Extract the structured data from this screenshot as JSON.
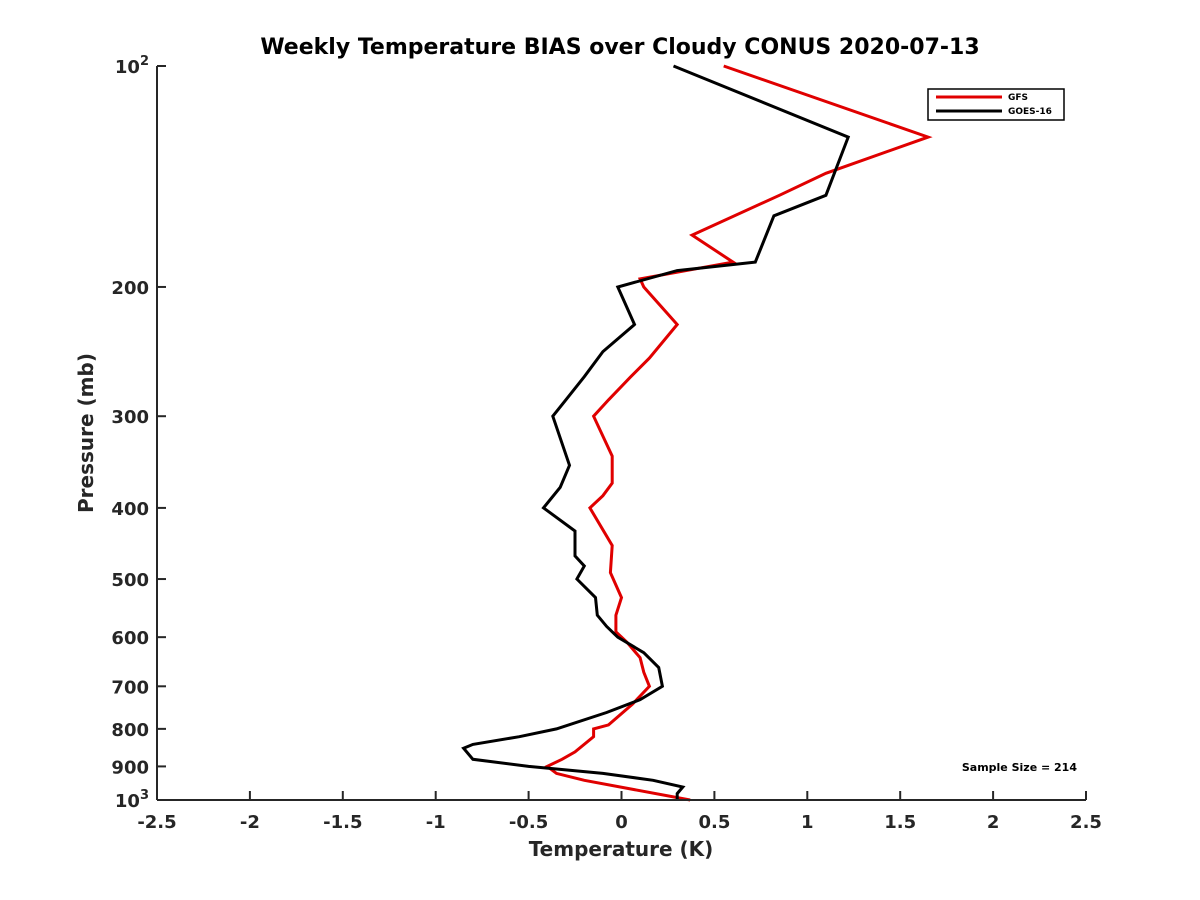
{
  "chart_data": {
    "type": "line",
    "title": "Weekly Temperature BIAS over Cloudy CONUS 2020-07-13",
    "xlabel": "Temperature (K)",
    "ylabel": "Pressure (mb)",
    "xlim": [
      -2.5,
      2.5
    ],
    "ylim": [
      100,
      1000
    ],
    "y_scale": "log",
    "y_reversed": true,
    "x_ticks": [
      -2.5,
      -2,
      -1.5,
      -1,
      -0.5,
      0,
      0.5,
      1,
      1.5,
      2,
      2.5
    ],
    "x_tick_labels": [
      "-2.5",
      "-2",
      "-1.5",
      "-1",
      "-0.5",
      "0",
      "0.5",
      "1",
      "1.5",
      "2",
      "2.5"
    ],
    "y_ticks": [
      {
        "value": 100,
        "label": "10",
        "sup": "2"
      },
      {
        "value": 200,
        "label": "200",
        "sup": ""
      },
      {
        "value": 300,
        "label": "300",
        "sup": ""
      },
      {
        "value": 400,
        "label": "400",
        "sup": ""
      },
      {
        "value": 500,
        "label": "500",
        "sup": ""
      },
      {
        "value": 600,
        "label": "600",
        "sup": ""
      },
      {
        "value": 700,
        "label": "700",
        "sup": ""
      },
      {
        "value": 800,
        "label": "800",
        "sup": ""
      },
      {
        "value": 900,
        "label": "900",
        "sup": ""
      },
      {
        "value": 1000,
        "label": "10",
        "sup": "3"
      }
    ],
    "grid": false,
    "legend_position": "top-right",
    "series": [
      {
        "name": "GFS",
        "color": "#e00000",
        "points": [
          [
            0.55,
            100
          ],
          [
            1.65,
            125
          ],
          [
            1.1,
            140
          ],
          [
            0.85,
            150
          ],
          [
            0.38,
            170
          ],
          [
            0.6,
            185
          ],
          [
            0.1,
            195
          ],
          [
            0.12,
            200
          ],
          [
            0.3,
            225
          ],
          [
            0.15,
            250
          ],
          [
            0.05,
            265
          ],
          [
            -0.07,
            285
          ],
          [
            -0.15,
            300
          ],
          [
            -0.05,
            340
          ],
          [
            -0.05,
            370
          ],
          [
            -0.1,
            385
          ],
          [
            -0.17,
            400
          ],
          [
            -0.05,
            450
          ],
          [
            -0.06,
            490
          ],
          [
            0,
            530
          ],
          [
            -0.03,
            560
          ],
          [
            -0.03,
            590
          ],
          [
            0.03,
            610
          ],
          [
            0.1,
            640
          ],
          [
            0.12,
            670
          ],
          [
            0.15,
            700
          ],
          [
            0.06,
            740
          ],
          [
            -0.07,
            790
          ],
          [
            -0.15,
            800
          ],
          [
            -0.15,
            820
          ],
          [
            -0.25,
            860
          ],
          [
            -0.32,
            880
          ],
          [
            -0.4,
            900
          ],
          [
            -0.35,
            920
          ],
          [
            -0.2,
            940
          ],
          [
            0.37,
            1000
          ]
        ]
      },
      {
        "name": "GOES-16",
        "color": "#000000",
        "points": [
          [
            0.28,
            100
          ],
          [
            1.22,
            125
          ],
          [
            1.1,
            150
          ],
          [
            0.82,
            160
          ],
          [
            0.72,
            185
          ],
          [
            0.3,
            190
          ],
          [
            -0.02,
            200
          ],
          [
            0.07,
            225
          ],
          [
            -0.1,
            245
          ],
          [
            -0.2,
            265
          ],
          [
            -0.3,
            285
          ],
          [
            -0.37,
            300
          ],
          [
            -0.28,
            350
          ],
          [
            -0.33,
            375
          ],
          [
            -0.42,
            400
          ],
          [
            -0.25,
            430
          ],
          [
            -0.25,
            465
          ],
          [
            -0.2,
            480
          ],
          [
            -0.24,
            500
          ],
          [
            -0.14,
            530
          ],
          [
            -0.13,
            560
          ],
          [
            -0.08,
            580
          ],
          [
            -0.02,
            600
          ],
          [
            0.12,
            630
          ],
          [
            0.2,
            660
          ],
          [
            0.22,
            700
          ],
          [
            0.1,
            730
          ],
          [
            -0.08,
            760
          ],
          [
            -0.35,
            800
          ],
          [
            -0.55,
            820
          ],
          [
            -0.8,
            840
          ],
          [
            -0.85,
            850
          ],
          [
            -0.8,
            880
          ],
          [
            -0.5,
            900
          ],
          [
            -0.1,
            920
          ],
          [
            0.17,
            940
          ],
          [
            0.33,
            960
          ],
          [
            0.3,
            980
          ],
          [
            0.3,
            1000
          ]
        ]
      }
    ],
    "annotation": "Sample Size = 214"
  }
}
